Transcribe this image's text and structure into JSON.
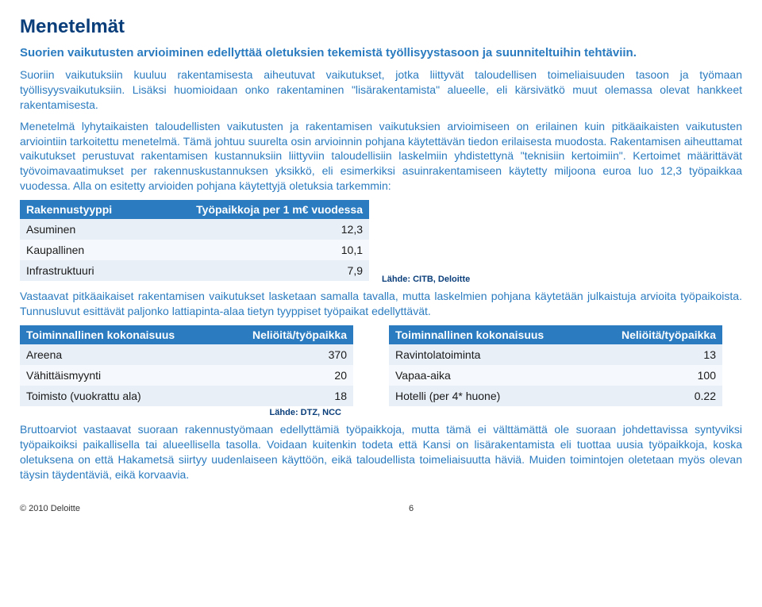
{
  "title": "Menetelmät",
  "subtitle": "Suorien vaikutusten arvioiminen edellyttää oletuksien tekemistä työllisyystasoon ja suunniteltuihin tehtäviin.",
  "para1": "Suoriin vaikutuksiin kuuluu rakentamisesta aiheutuvat vaikutukset, jotka liittyvät taloudellisen toimeliaisuuden tasoon ja työmaan työllisyysvaikutuksiin. Lisäksi huomioidaan onko rakentaminen \"lisärakentamista\" alueelle, eli kärsivätkö muut olemassa olevat hankkeet rakentamisesta.",
  "para2": "Menetelmä lyhytaikaisten taloudellisten vaikutusten ja rakentamisen vaikutuksien arvioimiseen on erilainen kuin pitkäaikaisten vaikutusten arviointiin tarkoitettu menetelmä. Tämä johtuu suurelta osin arvioinnin pohjana käytettävän tiedon erilaisesta muodosta. Rakentamisen aiheuttamat vaikutukset perustuvat rakentamisen kustannuksiin liittyviin taloudellisiin laskelmiin yhdistettynä \"teknisiin kertoimiin\". Kertoimet määrittävät työvoimavaatimukset per rakennuskustannuksen yksikkö, eli esimerkiksi asuinrakentamiseen käytetty miljoona euroa luo 12,3 työpaikkaa vuodessa. Alla on esitetty arvioiden pohjana käytettyjä oletuksia tarkemmin:",
  "table1": {
    "h1": "Rakennustyyppi",
    "h2": "Työpaikkoja per 1 m€ vuodessa",
    "rows": [
      {
        "label": "Asuminen",
        "value": "12,3"
      },
      {
        "label": "Kaupallinen",
        "value": "10,1"
      },
      {
        "label": "Infrastruktuuri",
        "value": "7,9"
      }
    ],
    "source": "Lähde: CITB, Deloitte"
  },
  "para3": "Vastaavat pitkäaikaiset rakentamisen vaikutukset  lasketaan  samalla tavalla, mutta laskelmien pohjana käytetään julkaistuja arvioita työpaikoista. Tunnusluvut esittävät paljonko lattiapinta-alaa tietyn tyyppiset työpaikat edellyttävät.",
  "table2": {
    "h1": "Toiminnallinen kokonaisuus",
    "h2": "Neliöitä/työpaikka",
    "rows": [
      {
        "label": "Areena",
        "value": "370"
      },
      {
        "label": "Vähittäismyynti",
        "value": "20"
      },
      {
        "label": "Toimisto (vuokrattu ala)",
        "value": "18"
      }
    ],
    "source": "Lähde: DTZ, NCC"
  },
  "table3": {
    "h1": "Toiminnallinen kokonaisuus",
    "h2": "Neliöitä/työpaikka",
    "rows": [
      {
        "label": "Ravintolatoiminta",
        "value": "13"
      },
      {
        "label": "Vapaa-aika",
        "value": "100"
      },
      {
        "label": "Hotelli (per 4* huone)",
        "value": "0.22"
      }
    ]
  },
  "para4": "Bruttoarviot vastaavat suoraan rakennustyömaan edellyttämiä työpaikkoja, mutta tämä ei välttämättä ole suoraan johdettavissa syntyviksi työpaikoiksi paikallisella tai alueellisella tasolla. Voidaan kuitenkin todeta että Kansi on lisärakentamista eli tuottaa uusia työpaikkoja, koska oletuksena on että Hakametsä siirtyy uudenlaiseen käyttöön, eikä taloudellista toimeliaisuutta häviä. Muiden toimintojen oletetaan myös olevan täysin täydentäviä, eikä korvaavia.",
  "footer": {
    "copyright": "© 2010 Deloitte",
    "page": "6"
  },
  "colors": {
    "heading": "#0a3e7a",
    "body_blue": "#2a7bbf",
    "th_bg": "#2a7bbf",
    "row_even": "#e8eff7",
    "row_odd": "#f5f8fc"
  }
}
